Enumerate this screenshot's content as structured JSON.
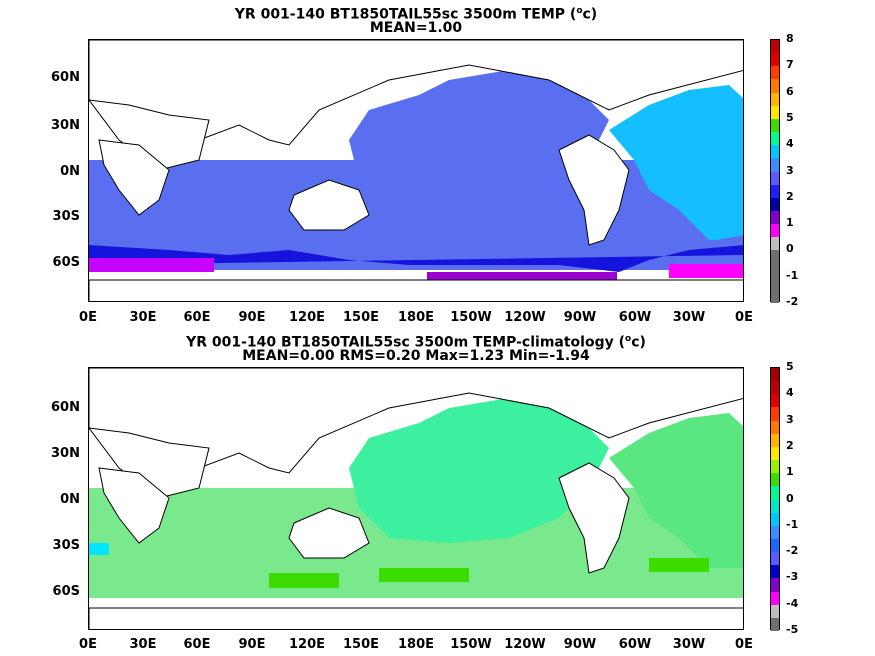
{
  "panels": [
    {
      "title_line1_pre": "YR 001-140 BT1850TAIL55sc 3500m TEMP (",
      "title_unit_sup": "o",
      "title_line1_post": "c)",
      "title_line2": "MEAN=1.00",
      "colorbar_labels": [
        "8",
        "7",
        "6",
        "5",
        "4",
        "3",
        "2",
        "1",
        "0",
        "-1",
        "-2"
      ],
      "colorbar_colors": [
        "#c00000",
        "#e00000",
        "#ff3c00",
        "#ff7800",
        "#ffb400",
        "#ffe600",
        "#3cdc00",
        "#00fa96",
        "#00c8ff",
        "#3c8cff",
        "#5a5aff",
        "#1e1eff",
        "#0000aa",
        "#8200c8",
        "#ff00ff",
        "#bebebe",
        "#6e6e6e",
        "#6e6e6e",
        "#6e6e6e",
        "#6e6e6e"
      ]
    },
    {
      "title_line1_pre": "YR 001-140 BT1850TAIL55sc 3500m TEMP-climatology (",
      "title_unit_sup": "o",
      "title_line1_post": "c)",
      "title_line2": "MEAN=0.00   RMS=0.20   Max=1.23   Min=-1.94",
      "colorbar_labels": [
        "5",
        "4",
        "3",
        "2",
        "1",
        "0",
        "-1",
        "-2",
        "-3",
        "-4",
        "-5"
      ],
      "colorbar_colors": [
        "#a00000",
        "#c00000",
        "#e00000",
        "#ff3c00",
        "#ff7800",
        "#ffb400",
        "#ffe600",
        "#96f000",
        "#3cdc00",
        "#00fa96",
        "#00e6c8",
        "#00c8ff",
        "#3c8cff",
        "#1e64ff",
        "#5a5aff",
        "#0000c8",
        "#8200c8",
        "#ff00ff",
        "#bebebe",
        "#6e6e6e"
      ]
    }
  ],
  "lat_labels": [
    "60N",
    "30N",
    "0N",
    "30S",
    "60S"
  ],
  "lon_labels": [
    "0E",
    "30E",
    "60E",
    "90E",
    "120E",
    "150E",
    "180E",
    "150W",
    "120W",
    "90W",
    "60W",
    "30W",
    "0E"
  ]
}
